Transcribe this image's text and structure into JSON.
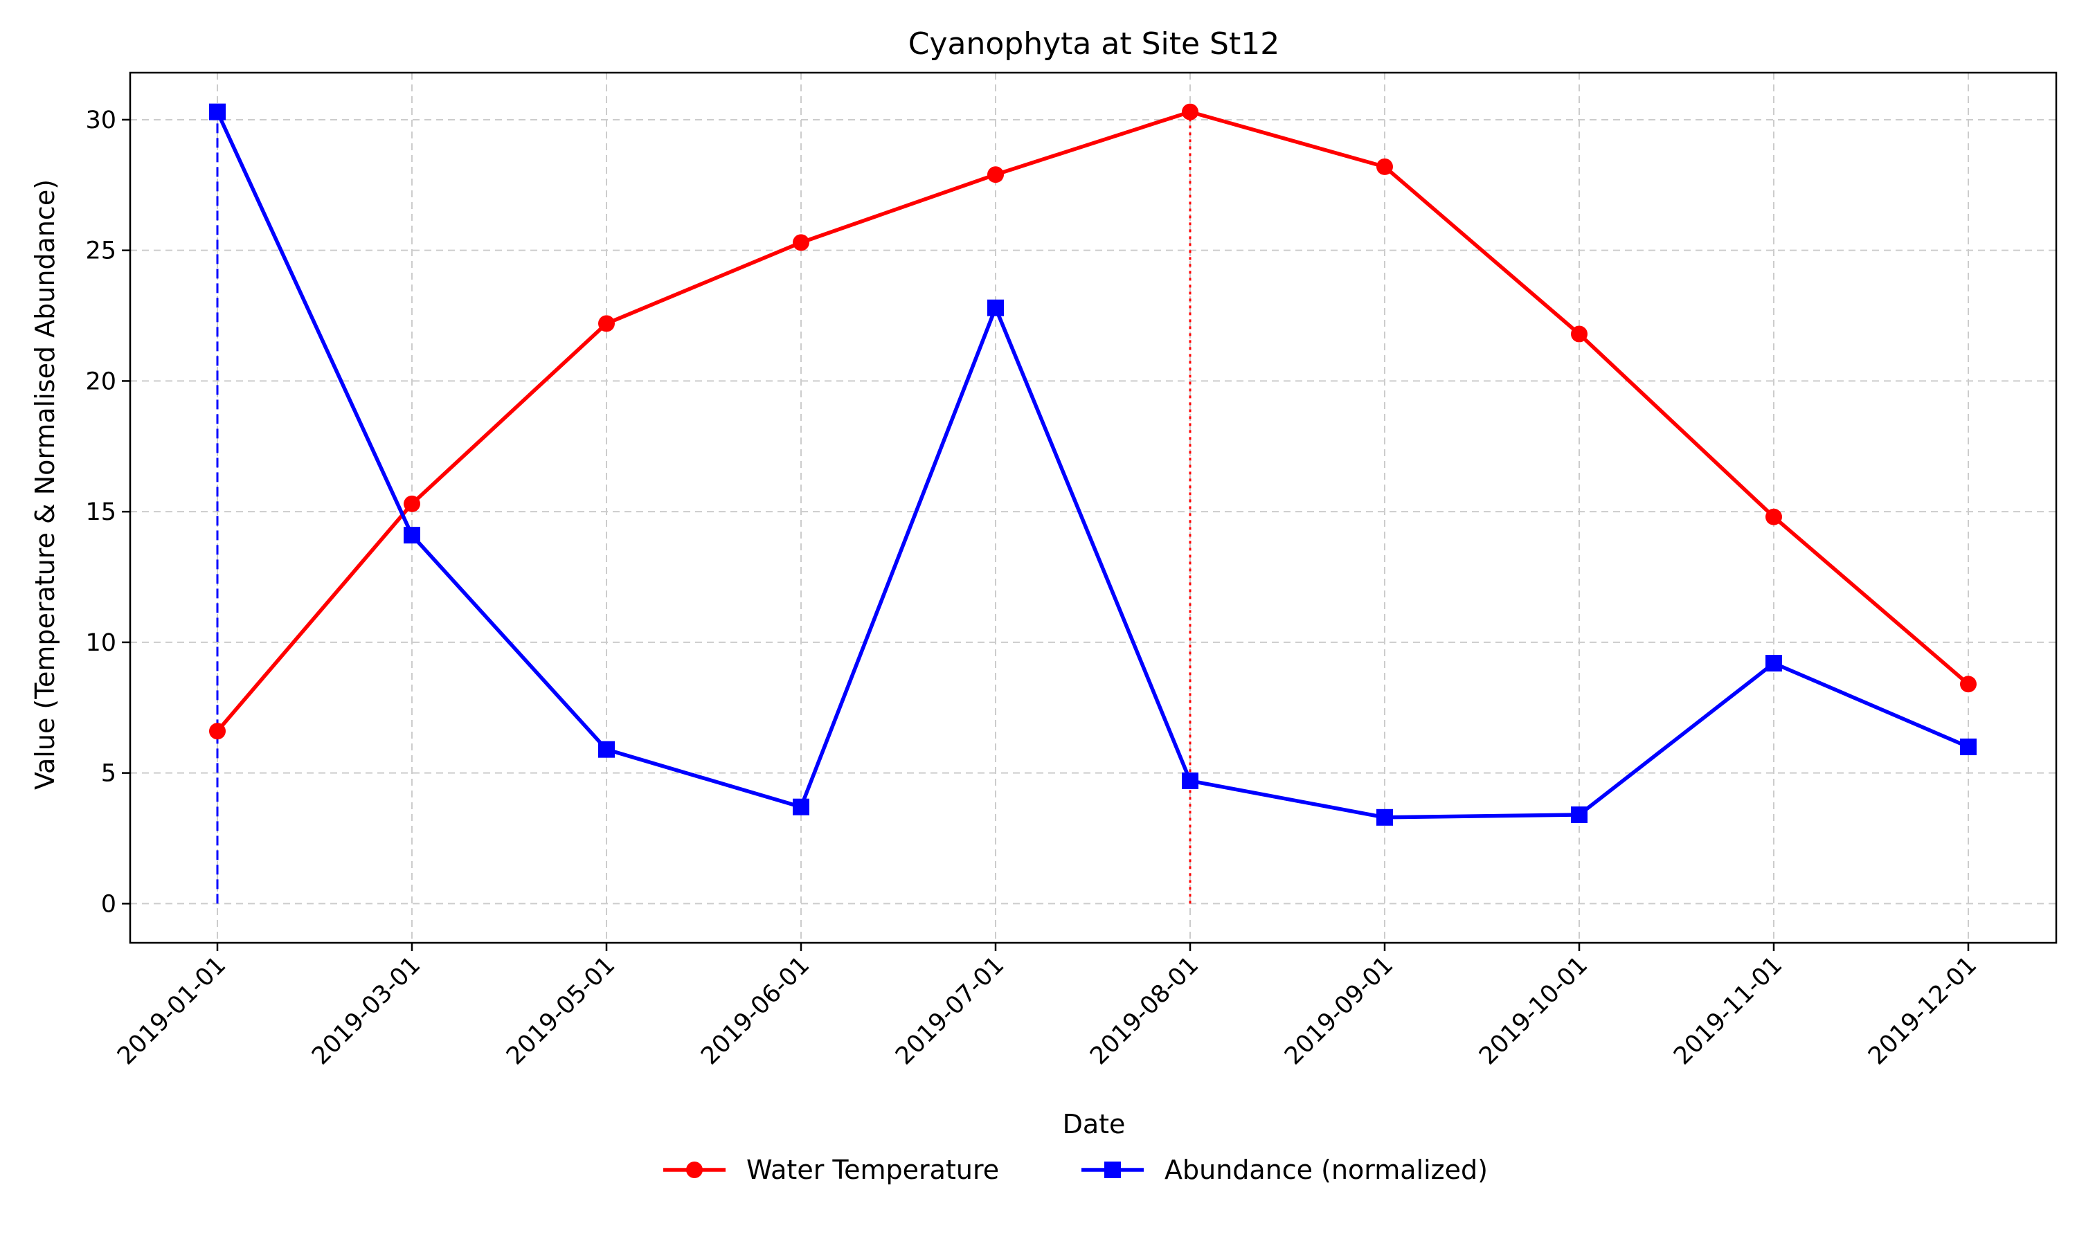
{
  "chart_data": {
    "type": "line",
    "title": "Cyanophyta at Site St12",
    "xlabel": "Date",
    "ylabel": "Value (Temperature & Normalised Abundance)",
    "categories": [
      "2019-01-01",
      "2019-03-01",
      "2019-05-01",
      "2019-06-01",
      "2019-07-01",
      "2019-08-01",
      "2019-09-01",
      "2019-10-01",
      "2019-11-01",
      "2019-12-01"
    ],
    "ylim": [
      -1.5,
      31.8
    ],
    "yticks": [
      0,
      5,
      10,
      15,
      20,
      25,
      30
    ],
    "grid": true,
    "legend_position": "bottom-center",
    "series": [
      {
        "name": "Water Temperature",
        "color": "#ff0000",
        "marker": "circle",
        "values": [
          6.6,
          15.3,
          22.2,
          25.3,
          27.9,
          30.3,
          28.2,
          21.8,
          14.8,
          8.4
        ]
      },
      {
        "name": "Abundance (normalized)",
        "color": "#0000ff",
        "marker": "square",
        "values": [
          30.3,
          14.1,
          5.9,
          3.7,
          22.8,
          4.7,
          3.3,
          3.4,
          9.2,
          6.0
        ]
      }
    ],
    "reference_lines": [
      {
        "category": "2019-01-01",
        "from": 0,
        "to": 30.3,
        "color": "#0000ff",
        "style": "dashed"
      },
      {
        "category": "2019-08-01",
        "from": 0,
        "to": 30.3,
        "color": "#ff0000",
        "style": "dotted"
      }
    ]
  }
}
